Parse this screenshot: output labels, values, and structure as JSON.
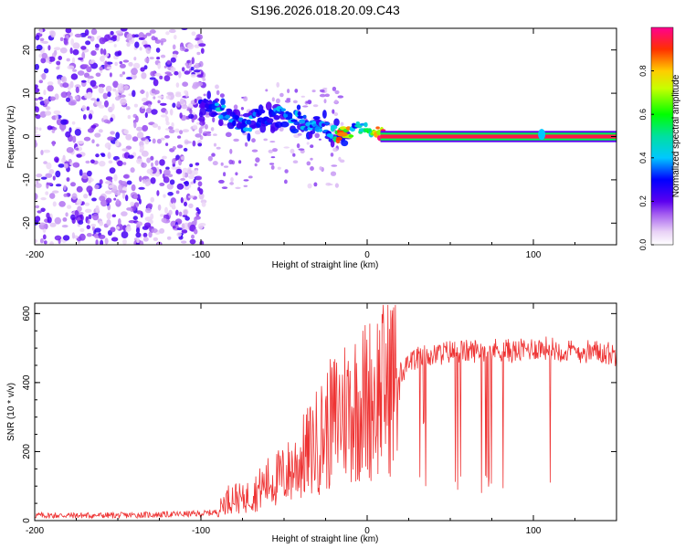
{
  "figure_title": "S196.2026.018.20.09.C43",
  "chart_data": [
    {
      "type": "heatmap",
      "title": "S196.2026.018.20.09.C43",
      "xlabel": "Height of straight line (km)",
      "ylabel": "Frequency (Hz)",
      "xlim": [
        -200,
        150
      ],
      "ylim": [
        -25,
        25
      ],
      "x_ticks": [
        -200,
        -100,
        0,
        100
      ],
      "y_ticks": [
        -20,
        -10,
        0,
        10,
        20
      ],
      "colorbar": {
        "label": "Normalized spectral amplitude",
        "range": [
          0,
          1
        ],
        "ticks": [
          "0.0",
          "0.2",
          "0.4",
          "0.6",
          "0.8"
        ]
      },
      "noise_region": {
        "x_range": [
          -200,
          -98
        ],
        "freq_range": [
          -25,
          25
        ],
        "amplitude": [
          0.05,
          0.25
        ]
      },
      "tone_track": [
        {
          "x": -100,
          "freq": 7,
          "amp": 0.25
        },
        {
          "x": -92,
          "freq": 6.5,
          "amp": 0.3
        },
        {
          "x": -88,
          "freq": 6,
          "amp": 0.45
        },
        {
          "x": -84,
          "freq": 5.5,
          "amp": 0.35
        },
        {
          "x": -78,
          "freq": 3,
          "amp": 0.3
        },
        {
          "x": -72,
          "freq": 2,
          "amp": 0.35
        },
        {
          "x": -66,
          "freq": 5,
          "amp": 0.3
        },
        {
          "x": -60,
          "freq": 4,
          "amp": 0.3
        },
        {
          "x": -54,
          "freq": 5,
          "amp": 0.35
        },
        {
          "x": -48,
          "freq": 5,
          "amp": 0.35
        },
        {
          "x": -42,
          "freq": 4,
          "amp": 0.4
        },
        {
          "x": -36,
          "freq": 3,
          "amp": 0.35
        },
        {
          "x": -30,
          "freq": 3,
          "amp": 0.35
        },
        {
          "x": -24,
          "freq": 2,
          "amp": 0.3
        },
        {
          "x": -18,
          "freq": 0.5,
          "amp": 0.75
        },
        {
          "x": -12,
          "freq": 0.5,
          "amp": 0.8
        },
        {
          "x": -8,
          "freq": 2,
          "amp": 0.4
        },
        {
          "x": -4,
          "freq": 2.5,
          "amp": 0.45
        },
        {
          "x": 0,
          "freq": 2,
          "amp": 0.5
        },
        {
          "x": 4,
          "freq": 1.5,
          "amp": 0.6
        },
        {
          "x": 10,
          "freq": 0.2,
          "amp": 0.95
        },
        {
          "x": 30,
          "freq": 0,
          "amp": 0.95
        },
        {
          "x": 60,
          "freq": 0,
          "amp": 0.95
        },
        {
          "x": 90,
          "freq": 0,
          "amp": 0.95
        },
        {
          "x": 105,
          "freq": 0.5,
          "amp": 0.5
        },
        {
          "x": 120,
          "freq": 0,
          "amp": 0.95
        },
        {
          "x": 150,
          "freq": 0,
          "amp": 0.95
        }
      ]
    },
    {
      "type": "line",
      "xlabel": "Height of straight line (km)",
      "ylabel": "SNR (10 * v/v)",
      "xlim": [
        -200,
        150
      ],
      "ylim": [
        0,
        630
      ],
      "x_ticks": [
        -200,
        -100,
        0,
        100
      ],
      "y_ticks": [
        0,
        200,
        400,
        600
      ],
      "series": [
        {
          "name": "SNR",
          "color": "#ee3333",
          "x": [
            -200,
            -150,
            -100,
            -90,
            -85,
            -80,
            -75,
            -70,
            -65,
            -60,
            -55,
            -50,
            -45,
            -40,
            -35,
            -30,
            -25,
            -20,
            -15,
            -10,
            -5,
            0,
            5,
            10,
            15,
            20,
            25,
            30,
            40,
            50,
            60,
            70,
            80,
            90,
            100,
            110,
            120,
            130,
            140,
            150
          ],
          "y": [
            15,
            15,
            20,
            25,
            60,
            70,
            60,
            75,
            90,
            110,
            120,
            130,
            150,
            175,
            200,
            230,
            260,
            290,
            320,
            330,
            340,
            350,
            370,
            390,
            410,
            430,
            450,
            470,
            480,
            490,
            490,
            495,
            495,
            490,
            500,
            500,
            490,
            490,
            490,
            480
          ]
        }
      ],
      "dropout_floor": 75
    }
  ]
}
